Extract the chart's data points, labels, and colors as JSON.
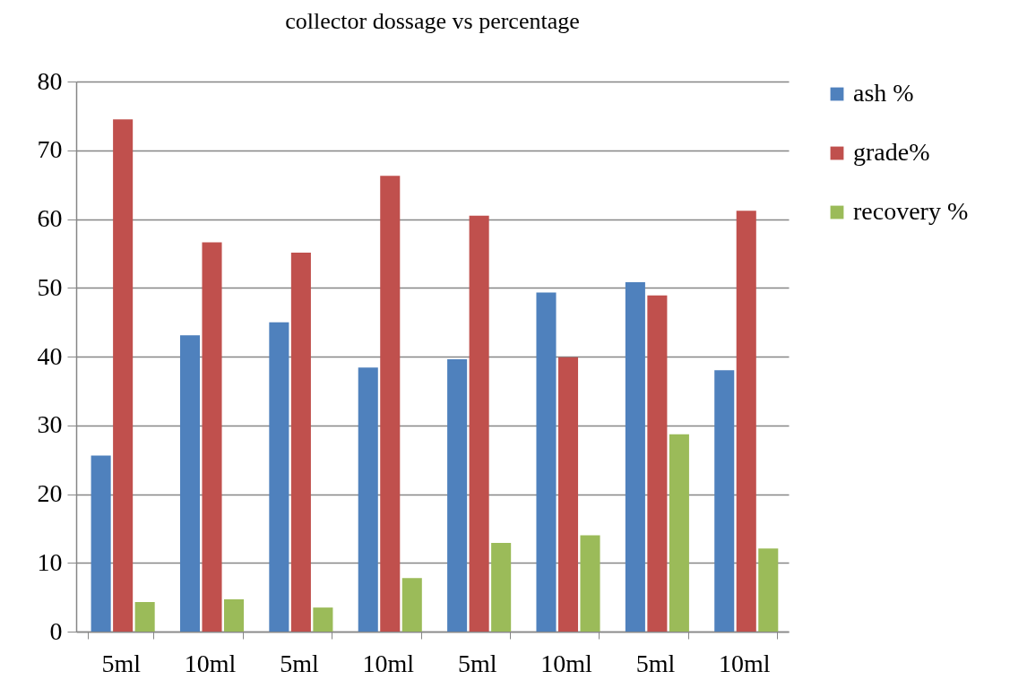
{
  "chart_data": {
    "type": "bar",
    "title": "collector  dossage vs percentage",
    "categories": [
      "5ml",
      "10ml",
      "5ml",
      "10ml",
      "5ml",
      "10ml",
      "5ml",
      "10ml"
    ],
    "series": [
      {
        "name": "ash %",
        "color": "#4f81bd",
        "values": [
          25.6,
          43.1,
          45.0,
          38.4,
          39.6,
          49.3,
          50.8,
          38.0
        ]
      },
      {
        "name": "grade%",
        "color": "#c0504d",
        "values": [
          74.5,
          56.6,
          55.1,
          66.3,
          60.5,
          39.9,
          48.9,
          61.2
        ]
      },
      {
        "name": "recovery %",
        "color": "#9bbb59",
        "values": [
          4.3,
          4.7,
          3.5,
          7.8,
          12.9,
          14.0,
          28.7,
          12.1
        ]
      }
    ],
    "ylim": [
      0,
      80
    ],
    "yticks": [
      0,
      10,
      20,
      30,
      40,
      50,
      60,
      70,
      80
    ],
    "grid": "y",
    "legend": "right"
  }
}
